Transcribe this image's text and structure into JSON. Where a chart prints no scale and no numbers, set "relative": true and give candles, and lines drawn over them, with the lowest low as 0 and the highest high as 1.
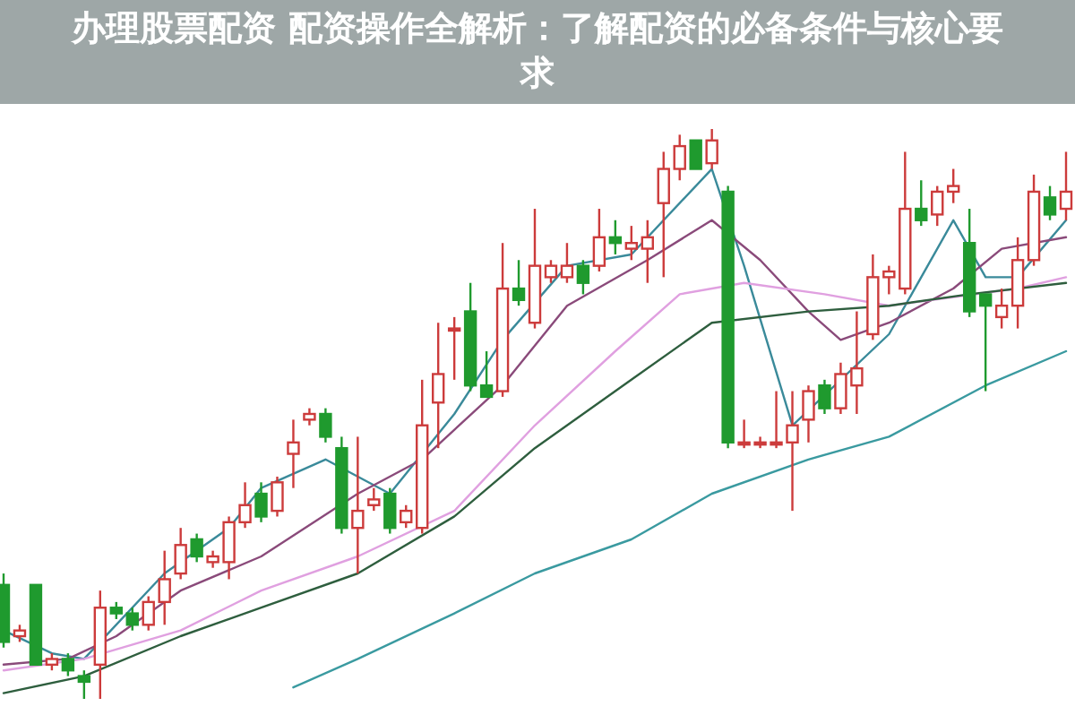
{
  "chart_data": {
    "type": "candlestick",
    "title": "办理股票配资 配资操作全解析：了解配资的必备条件与核心要求",
    "relative": true,
    "categories": [
      null,
      null,
      null,
      null,
      null,
      null,
      null,
      null,
      null,
      null,
      null,
      null,
      null,
      null,
      null,
      null,
      null,
      null,
      null,
      null,
      null,
      null,
      null,
      null,
      null,
      null,
      null,
      null,
      null,
      null,
      null,
      null,
      null,
      null,
      null,
      null,
      null,
      null,
      null,
      null,
      null,
      null,
      null,
      null,
      null,
      null,
      null,
      null,
      null,
      null,
      null,
      null,
      null,
      null,
      null,
      null,
      null,
      null,
      null,
      null,
      null,
      null,
      null,
      null,
      null,
      null,
      null
    ],
    "ohlc": [
      [
        0.2,
        0.22,
        0.09,
        0.1
      ],
      [
        0.11,
        0.13,
        0.1,
        0.12
      ],
      [
        0.2,
        0.2,
        0.06,
        0.06
      ],
      [
        0.06,
        0.08,
        0.05,
        0.07
      ],
      [
        0.07,
        0.08,
        0.04,
        0.05
      ],
      [
        0.04,
        0.05,
        0,
        0.03
      ],
      [
        0.06,
        0.19,
        0,
        0.16
      ],
      [
        0.16,
        0.17,
        0.14,
        0.15
      ],
      [
        0.15,
        0.16,
        0.12,
        0.13
      ],
      [
        0.13,
        0.18,
        0.12,
        0.17
      ],
      [
        0.17,
        0.26,
        0.13,
        0.21
      ],
      [
        0.22,
        0.3,
        0.21,
        0.27
      ],
      [
        0.28,
        0.29,
        0.24,
        0.25
      ],
      [
        0.24,
        0.26,
        0.23,
        0.25
      ],
      [
        0.24,
        0.32,
        0.21,
        0.31
      ],
      [
        0.31,
        0.38,
        0.3,
        0.34
      ],
      [
        0.36,
        0.38,
        0.31,
        0.32
      ],
      [
        0.33,
        0.39,
        0.32,
        0.38
      ],
      [
        0.43,
        0.49,
        0.37,
        0.45
      ],
      [
        0.49,
        0.51,
        0.48,
        0.5
      ],
      [
        0.5,
        0.51,
        0.45,
        0.46
      ],
      [
        0.44,
        0.46,
        0.29,
        0.3
      ],
      [
        0.3,
        0.46,
        0.22,
        0.33
      ],
      [
        0.34,
        0.37,
        0.33,
        0.35
      ],
      [
        0.36,
        0.37,
        0.29,
        0.3
      ],
      [
        0.31,
        0.34,
        0.3,
        0.33
      ],
      [
        0.3,
        0.56,
        0.29,
        0.48
      ],
      [
        0.52,
        0.66,
        0.44,
        0.57
      ],
      [
        0.65,
        0.67,
        0.56,
        0.65
      ],
      [
        0.68,
        0.73,
        0.54,
        0.55
      ],
      [
        0.55,
        0.61,
        0.53,
        0.53
      ],
      [
        0.54,
        0.8,
        0.53,
        0.72
      ],
      [
        0.72,
        0.77,
        0.69,
        0.7
      ],
      [
        0.66,
        0.86,
        0.65,
        0.76
      ],
      [
        0.74,
        0.77,
        0.73,
        0.76
      ],
      [
        0.74,
        0.8,
        0.73,
        0.76
      ],
      [
        0.76,
        0.77,
        0.71,
        0.73
      ],
      [
        0.76,
        0.86,
        0.75,
        0.81
      ],
      [
        0.81,
        0.84,
        0.78,
        0.8
      ],
      [
        0.79,
        0.83,
        0.77,
        0.8
      ],
      [
        0.79,
        0.84,
        0.73,
        0.81
      ],
      [
        0.87,
        0.96,
        0.74,
        0.93
      ],
      [
        0.93,
        0.99,
        0.91,
        0.97
      ],
      [
        0.98,
        0.98,
        0.93,
        0.93
      ],
      [
        0.94,
        1,
        0.93,
        0.98
      ],
      [
        0.89,
        0.9,
        0.44,
        0.45
      ],
      [
        0.45,
        0.49,
        0.44,
        0.45
      ],
      [
        0.45,
        0.46,
        0.44,
        0.45
      ],
      [
        0.45,
        0.54,
        0.44,
        0.45
      ],
      [
        0.45,
        0.54,
        0.33,
        0.48
      ],
      [
        0.49,
        0.55,
        0.45,
        0.54
      ],
      [
        0.55,
        0.56,
        0.5,
        0.51
      ],
      [
        0.51,
        0.59,
        0.5,
        0.57
      ],
      [
        0.55,
        0.68,
        0.5,
        0.58
      ],
      [
        0.64,
        0.78,
        0.63,
        0.74
      ],
      [
        0.74,
        0.76,
        0.71,
        0.75
      ],
      [
        0.72,
        0.96,
        0.71,
        0.86
      ],
      [
        0.86,
        0.91,
        0.83,
        0.84
      ],
      [
        0.85,
        0.9,
        0.83,
        0.89
      ],
      [
        0.89,
        0.93,
        0.87,
        0.9
      ],
      [
        0.8,
        0.86,
        0.67,
        0.68
      ],
      [
        0.71,
        0.71,
        0.54,
        0.69
      ],
      [
        0.67,
        0.72,
        0.65,
        0.69
      ],
      [
        0.69,
        0.81,
        0.65,
        0.77
      ],
      [
        0.77,
        0.92,
        0.76,
        0.89
      ],
      [
        0.88,
        0.9,
        0.84,
        0.85
      ],
      [
        0.86,
        0.96,
        0.84,
        0.89
      ]
    ],
    "series": [
      {
        "type": "line",
        "color": "#3a8a9a",
        "values": [
          0.12,
          null,
          null,
          0.08,
          null,
          0.07,
          0.1,
          null,
          null,
          null,
          0.22,
          null,
          null,
          null,
          0.3,
          null,
          0.37,
          null,
          null,
          null,
          0.42,
          null,
          null,
          null,
          0.36,
          null,
          null,
          null,
          0.5,
          null,
          null,
          0.63,
          null,
          null,
          null,
          0.76,
          null,
          null,
          null,
          0.78,
          null,
          null,
          null,
          null,
          0.93,
          null,
          0.76,
          null,
          null,
          0.48,
          null,
          null,
          null,
          null,
          null,
          0.64,
          null,
          null,
          null,
          0.84,
          null,
          0.74,
          null,
          0.74,
          null,
          null,
          0.84
        ]
      },
      {
        "type": "line",
        "color": "#8a4a7a",
        "values": [
          0.06,
          null,
          null,
          null,
          0.07,
          null,
          null,
          0.11,
          null,
          null,
          null,
          0.19,
          null,
          null,
          null,
          null,
          0.25,
          null,
          null,
          null,
          null,
          null,
          0.36,
          null,
          null,
          null,
          0.42,
          null,
          null,
          null,
          null,
          0.55,
          null,
          null,
          null,
          0.69,
          null,
          null,
          null,
          null,
          0.77,
          null,
          null,
          null,
          0.84,
          null,
          null,
          0.77,
          null,
          null,
          0.68,
          null,
          0.63,
          null,
          null,
          0.66,
          null,
          null,
          null,
          0.72,
          null,
          null,
          0.79,
          null,
          null,
          null,
          0.81
        ]
      },
      {
        "type": "line",
        "color": "#e0a0e0",
        "values": [
          0.05,
          null,
          null,
          null,
          null,
          0.07,
          null,
          null,
          null,
          null,
          null,
          0.12,
          null,
          null,
          null,
          null,
          0.19,
          null,
          null,
          null,
          null,
          null,
          0.25,
          null,
          null,
          null,
          null,
          null,
          0.33,
          null,
          null,
          null,
          null,
          0.48,
          null,
          null,
          null,
          null,
          0.61,
          null,
          null,
          null,
          0.71,
          null,
          null,
          null,
          0.73,
          null,
          null,
          null,
          null,
          0.71,
          null,
          null,
          null,
          0.69,
          null,
          null,
          null,
          null,
          null,
          null,
          null,
          0.72,
          null,
          null,
          0.74
        ]
      },
      {
        "type": "line",
        "color": "#2e5e3e",
        "values": [
          0.01,
          null,
          null,
          null,
          null,
          0.04,
          null,
          null,
          null,
          null,
          null,
          0.11,
          null,
          null,
          null,
          null,
          0.16,
          null,
          null,
          null,
          null,
          null,
          0.22,
          null,
          null,
          null,
          null,
          null,
          0.32,
          null,
          null,
          null,
          null,
          0.44,
          null,
          null,
          null,
          null,
          null,
          0.56,
          null,
          null,
          null,
          null,
          0.66,
          null,
          null,
          null,
          null,
          null,
          0.68,
          null,
          null,
          null,
          null,
          0.69,
          null,
          null,
          null,
          null,
          0.71,
          null,
          null,
          null,
          null,
          null,
          0.73
        ]
      },
      {
        "type": "line",
        "color": "#3a9aa0",
        "values": [
          null,
          null,
          null,
          null,
          null,
          null,
          null,
          null,
          null,
          null,
          null,
          null,
          null,
          null,
          null,
          null,
          null,
          null,
          0.02,
          null,
          null,
          null,
          0.07,
          null,
          null,
          null,
          null,
          null,
          0.15,
          null,
          null,
          null,
          null,
          0.22,
          null,
          null,
          null,
          null,
          null,
          0.28,
          null,
          null,
          null,
          null,
          0.36,
          null,
          null,
          null,
          null,
          null,
          0.42,
          null,
          null,
          null,
          null,
          0.46,
          null,
          null,
          null,
          null,
          null,
          0.55,
          null,
          null,
          null,
          null,
          0.61
        ]
      }
    ]
  }
}
